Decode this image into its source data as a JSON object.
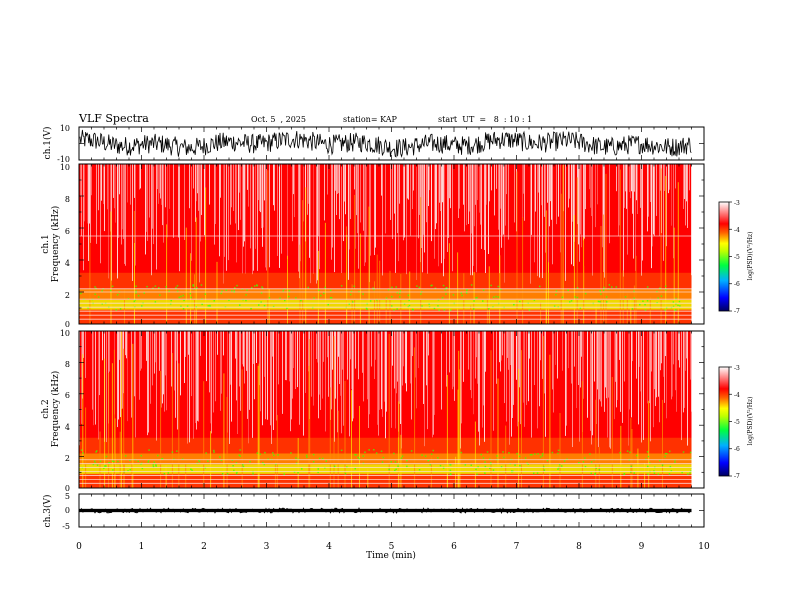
{
  "header": {
    "title": "VLF Spectra",
    "date": "Oct. 5  , 2025",
    "station": "station= KAP",
    "start": "start  UT  =   8  : 10 : 1"
  },
  "colors": {
    "background": "#ffffff",
    "axis": "#000000",
    "spectrogram_base": "#ff0000",
    "colormap": [
      "#000080",
      "#0000ff",
      "#00c0ff",
      "#00ff00",
      "#ffff00",
      "#ff8000",
      "#ff0000",
      "#ffb0b0",
      "#ffffff"
    ]
  },
  "chart_data": [
    {
      "id": "ch1-waveform",
      "type": "line",
      "ylabel": "ch.1(V)",
      "ylim": [
        -10,
        10
      ],
      "yticks": [
        "10",
        "-10"
      ],
      "xlim": [
        0,
        10
      ],
      "description_values": "dense oscillating signal, amplitude roughly -8..+8 V"
    },
    {
      "id": "ch1-spectrogram",
      "type": "heatmap",
      "ylabel": "ch.1 Frequency (kHz)",
      "ylabel_line1": "ch.1",
      "ylabel_line2": "Frequency  (kHz)",
      "ylim": [
        0,
        10
      ],
      "yticks": [
        "0",
        "2",
        "4",
        "6",
        "8",
        "10"
      ],
      "xlim": [
        0,
        10
      ],
      "data_end_min": 9.8,
      "hum_lines_khz": [
        0.3,
        0.55,
        0.8,
        1.05,
        1.3,
        1.55,
        2.0,
        2.2,
        5.5
      ],
      "colorbar": {
        "label": "log(PSD)(V²/Hz)",
        "ticks": [
          "-3",
          "-4",
          "-5",
          "-6",
          "-7"
        ],
        "range": [
          -7,
          -3
        ]
      }
    },
    {
      "id": "ch2-spectrogram",
      "type": "heatmap",
      "ylabel": "ch.2 Frequency (kHz)",
      "ylabel_line1": "ch.2",
      "ylabel_line2": "Frequency  (kHz)",
      "ylim": [
        0,
        10
      ],
      "yticks": [
        "0",
        "2",
        "4",
        "6",
        "8",
        "10"
      ],
      "xlim": [
        0,
        10
      ],
      "data_end_min": 9.8,
      "hum_lines_khz": [
        0.3,
        0.55,
        0.8,
        1.05,
        1.3,
        1.55,
        1.8
      ],
      "colorbar": {
        "label": "log(PSD)(V²/Hz)",
        "ticks": [
          "-3",
          "-4",
          "-5",
          "-6",
          "-7"
        ],
        "range": [
          -7,
          -3
        ]
      }
    },
    {
      "id": "ch3-waveform",
      "type": "line",
      "ylabel": "ch.3(V)",
      "ylim": [
        -5,
        5
      ],
      "yticks": [
        "5",
        "0",
        "-5"
      ],
      "xlim": [
        0,
        10
      ],
      "level_v": 0,
      "description_values": "flat thick trace near 0 V with small noise"
    }
  ],
  "xaxis": {
    "label": "Time  (min)",
    "ticks": [
      "0",
      "1",
      "2",
      "3",
      "4",
      "5",
      "6",
      "7",
      "8",
      "9",
      "10"
    ],
    "range": [
      0,
      10
    ]
  }
}
